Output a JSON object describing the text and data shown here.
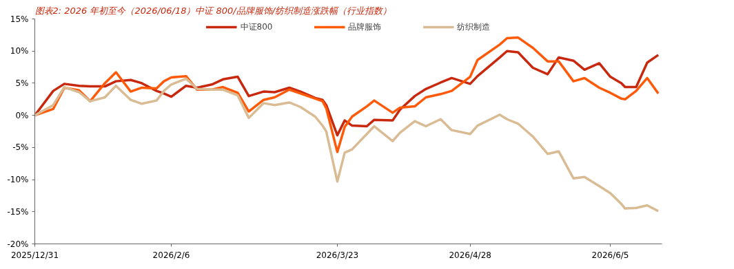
{
  "chart_data": {
    "type": "line",
    "title": "图表2: 2026 年初至今（2026/06/18）中证 800/品牌服饰/纺织制造涨跌幅（行业指数）",
    "x": [
      "2025-12-31",
      "2026-01-05",
      "2026-01-08",
      "2026-01-12",
      "2026-01-15",
      "2026-01-19",
      "2026-01-22",
      "2026-01-26",
      "2026-01-29",
      "2026-02-02",
      "2026-02-04",
      "2026-02-06",
      "2026-02-10",
      "2026-02-13",
      "2026-02-17",
      "2026-02-20",
      "2026-02-24",
      "2026-02-27",
      "2026-03-03",
      "2026-03-06",
      "2026-03-10",
      "2026-03-13",
      "2026-03-17",
      "2026-03-19",
      "2026-03-20",
      "2026-03-23",
      "2026-03-25",
      "2026-03-27",
      "2026-03-31",
      "2026-04-02",
      "2026-04-07",
      "2026-04-09",
      "2026-04-13",
      "2026-04-16",
      "2026-04-20",
      "2026-04-23",
      "2026-04-28",
      "2026-04-30",
      "2026-05-06",
      "2026-05-08",
      "2026-05-11",
      "2026-05-15",
      "2026-05-19",
      "2026-05-22",
      "2026-05-26",
      "2026-05-29",
      "2026-06-02",
      "2026-06-05",
      "2026-06-08",
      "2026-06-09",
      "2026-06-12",
      "2026-06-15",
      "2026-06-18"
    ],
    "series": [
      {
        "name": "中证800",
        "color": "#c8290e",
        "values": [
          0,
          3.8,
          4.9,
          4.6,
          4.5,
          4.5,
          5.3,
          5.5,
          5.0,
          3.8,
          3.4,
          2.9,
          4.6,
          4.3,
          4.8,
          5.6,
          6.0,
          3.0,
          3.7,
          3.6,
          4.3,
          3.7,
          2.7,
          2.4,
          1.6,
          -3.1,
          -0.8,
          -1.6,
          -1.7,
          -0.7,
          -0.8,
          0.9,
          3.0,
          4.1,
          5.1,
          5.8,
          4.9,
          6.1,
          9.0,
          10.0,
          9.8,
          7.4,
          6.4,
          9.0,
          8.5,
          7.1,
          8.1,
          6.0,
          5.0,
          4.4,
          4.4,
          8.2,
          9.4
        ]
      },
      {
        "name": "品牌服饰",
        "color": "#ff5a0a",
        "values": [
          0,
          1.0,
          4.3,
          3.9,
          2.2,
          5.0,
          6.7,
          3.7,
          4.3,
          4.2,
          5.3,
          5.9,
          6.1,
          4.0,
          4.0,
          4.4,
          3.5,
          0.6,
          2.4,
          2.8,
          4.0,
          3.4,
          2.6,
          2.2,
          1.1,
          -5.7,
          -1.8,
          -0.2,
          1.4,
          2.3,
          0.4,
          1.2,
          1.4,
          2.8,
          3.3,
          3.8,
          6.0,
          8.6,
          11.0,
          12.0,
          12.1,
          10.5,
          8.4,
          8.4,
          5.3,
          5.8,
          4.3,
          3.5,
          2.6,
          2.5,
          3.8,
          5.8,
          3.4
        ]
      },
      {
        "name": "纺织制造",
        "color": "#d9bc94",
        "values": [
          0,
          1.6,
          4.4,
          3.6,
          2.2,
          2.8,
          4.6,
          2.4,
          1.8,
          2.3,
          3.8,
          4.8,
          5.7,
          4.1,
          4.0,
          4.0,
          3.1,
          -0.4,
          1.9,
          1.6,
          2.0,
          1.3,
          -0.2,
          -1.6,
          -2.5,
          -10.3,
          -5.8,
          -5.3,
          -2.9,
          -1.7,
          -4.0,
          -2.7,
          -0.9,
          -1.7,
          -0.6,
          -2.3,
          -2.9,
          -1.6,
          0.1,
          -0.6,
          -1.3,
          -3.3,
          -6.0,
          -5.6,
          -9.8,
          -9.6,
          -11.0,
          -12.1,
          -13.8,
          -14.5,
          -14.4,
          -14.0,
          -14.9
        ]
      }
    ],
    "xlim": [
      "2025-12-31",
      "2026-06-19"
    ],
    "xticks": [
      {
        "value": "2025-12-31",
        "label": "2025/12/31"
      },
      {
        "value": "2026-02-06",
        "label": "2026/2/6"
      },
      {
        "value": "2026-03-23",
        "label": "2026/3/23"
      },
      {
        "value": "2026-04-28",
        "label": "2026/4/28"
      },
      {
        "value": "2026-06-05",
        "label": "2026/6/5"
      }
    ],
    "ylim": [
      -20,
      15
    ],
    "yticks": [
      {
        "value": -20,
        "label": "-20%"
      },
      {
        "value": -15,
        "label": "-15%"
      },
      {
        "value": -10,
        "label": "-10%"
      },
      {
        "value": -5,
        "label": "-5%"
      },
      {
        "value": 0,
        "label": "0%"
      },
      {
        "value": 5,
        "label": "5%"
      },
      {
        "value": 10,
        "label": "10%"
      },
      {
        "value": 15,
        "label": "15%"
      }
    ],
    "grid": false,
    "legend": "top",
    "marker": "none",
    "line_style": "solid"
  }
}
